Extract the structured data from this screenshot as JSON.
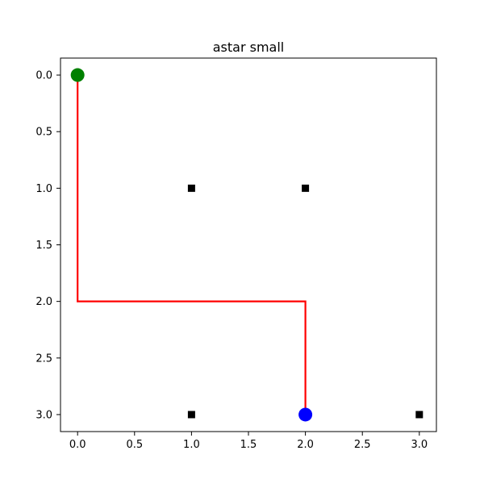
{
  "chart_data": {
    "type": "scatter",
    "title": "astar small",
    "xlabel": "",
    "ylabel": "",
    "xlim": [
      -0.15,
      3.15
    ],
    "ylim": [
      3.15,
      -0.15
    ],
    "y_inverted": true,
    "grid": false,
    "x_ticks": [
      0.0,
      0.5,
      1.0,
      1.5,
      2.0,
      2.5,
      3.0
    ],
    "x_tick_labels": [
      "0.0",
      "0.5",
      "1.0",
      "1.5",
      "2.0",
      "2.5",
      "3.0"
    ],
    "y_ticks": [
      0.0,
      0.5,
      1.0,
      1.5,
      2.0,
      2.5,
      3.0
    ],
    "y_tick_labels": [
      "0.0",
      "0.5",
      "1.0",
      "1.5",
      "2.0",
      "2.5",
      "3.0"
    ],
    "obstacles": [
      {
        "x": 1,
        "y": 1
      },
      {
        "x": 2,
        "y": 1
      },
      {
        "x": 1,
        "y": 3
      },
      {
        "x": 3,
        "y": 3
      }
    ],
    "path": [
      {
        "x": 0,
        "y": 0
      },
      {
        "x": 0,
        "y": 2
      },
      {
        "x": 2,
        "y": 2
      },
      {
        "x": 2,
        "y": 3
      }
    ],
    "start": {
      "x": 0,
      "y": 0
    },
    "goal": {
      "x": 2,
      "y": 3
    },
    "colors": {
      "obstacle": "#000000",
      "path": "#ff0000",
      "start": "#008000",
      "goal": "#0000ff",
      "axes": "#000000"
    }
  }
}
